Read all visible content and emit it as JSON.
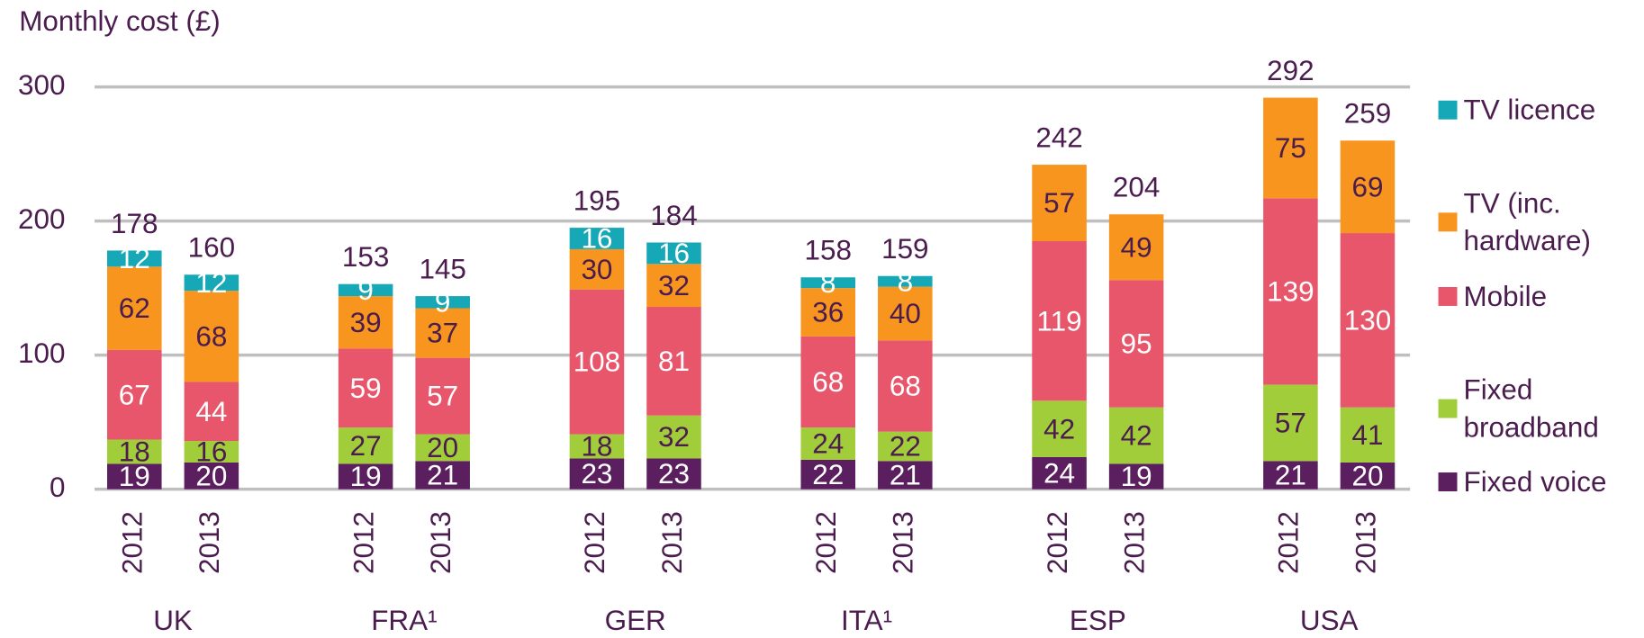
{
  "chart_data": {
    "type": "stacked_bar",
    "y_label": "Monthly cost (£)",
    "categories": [
      "2012",
      "2013",
      "2012",
      "2013",
      "2012",
      "2013",
      "2012",
      "2013",
      "2012",
      "2013",
      "2012",
      "2013"
    ],
    "groups": [
      "UK",
      "FRA¹",
      "GER",
      "ITA¹",
      "ESP",
      "USA"
    ],
    "series": [
      {
        "name": "Fixed voice",
        "color": "#5b1f5f",
        "label_color": "#ffffff",
        "values": [
          19,
          20,
          19,
          21,
          23,
          23,
          22,
          21,
          24,
          19,
          21,
          20
        ]
      },
      {
        "name": "Fixed broadband",
        "color": "#a2cd3a",
        "label_color": "#4b1c4e",
        "values": [
          18,
          16,
          27,
          20,
          18,
          32,
          24,
          22,
          42,
          42,
          57,
          41
        ]
      },
      {
        "name": "Mobile",
        "color": "#e8566b",
        "label_color": "#ffffff",
        "values": [
          67,
          44,
          59,
          57,
          108,
          81,
          68,
          68,
          119,
          95,
          139,
          130
        ]
      },
      {
        "name": "TV (inc. hardware)",
        "color": "#f7951f",
        "label_color": "#4b1c4e",
        "values": [
          62,
          68,
          39,
          37,
          30,
          32,
          36,
          40,
          57,
          49,
          75,
          69
        ]
      },
      {
        "name": "TV licence",
        "color": "#16a8b6",
        "label_color": "#ffffff",
        "values": [
          12,
          12,
          9,
          9,
          16,
          16,
          8,
          8,
          null,
          null,
          null,
          null
        ]
      }
    ],
    "totals": [
      178,
      160,
      153,
      145,
      195,
      184,
      158,
      159,
      242,
      204,
      292,
      259
    ],
    "ylim": [
      0,
      300
    ],
    "yticks": [
      0,
      100,
      200,
      300
    ],
    "grid": true
  }
}
